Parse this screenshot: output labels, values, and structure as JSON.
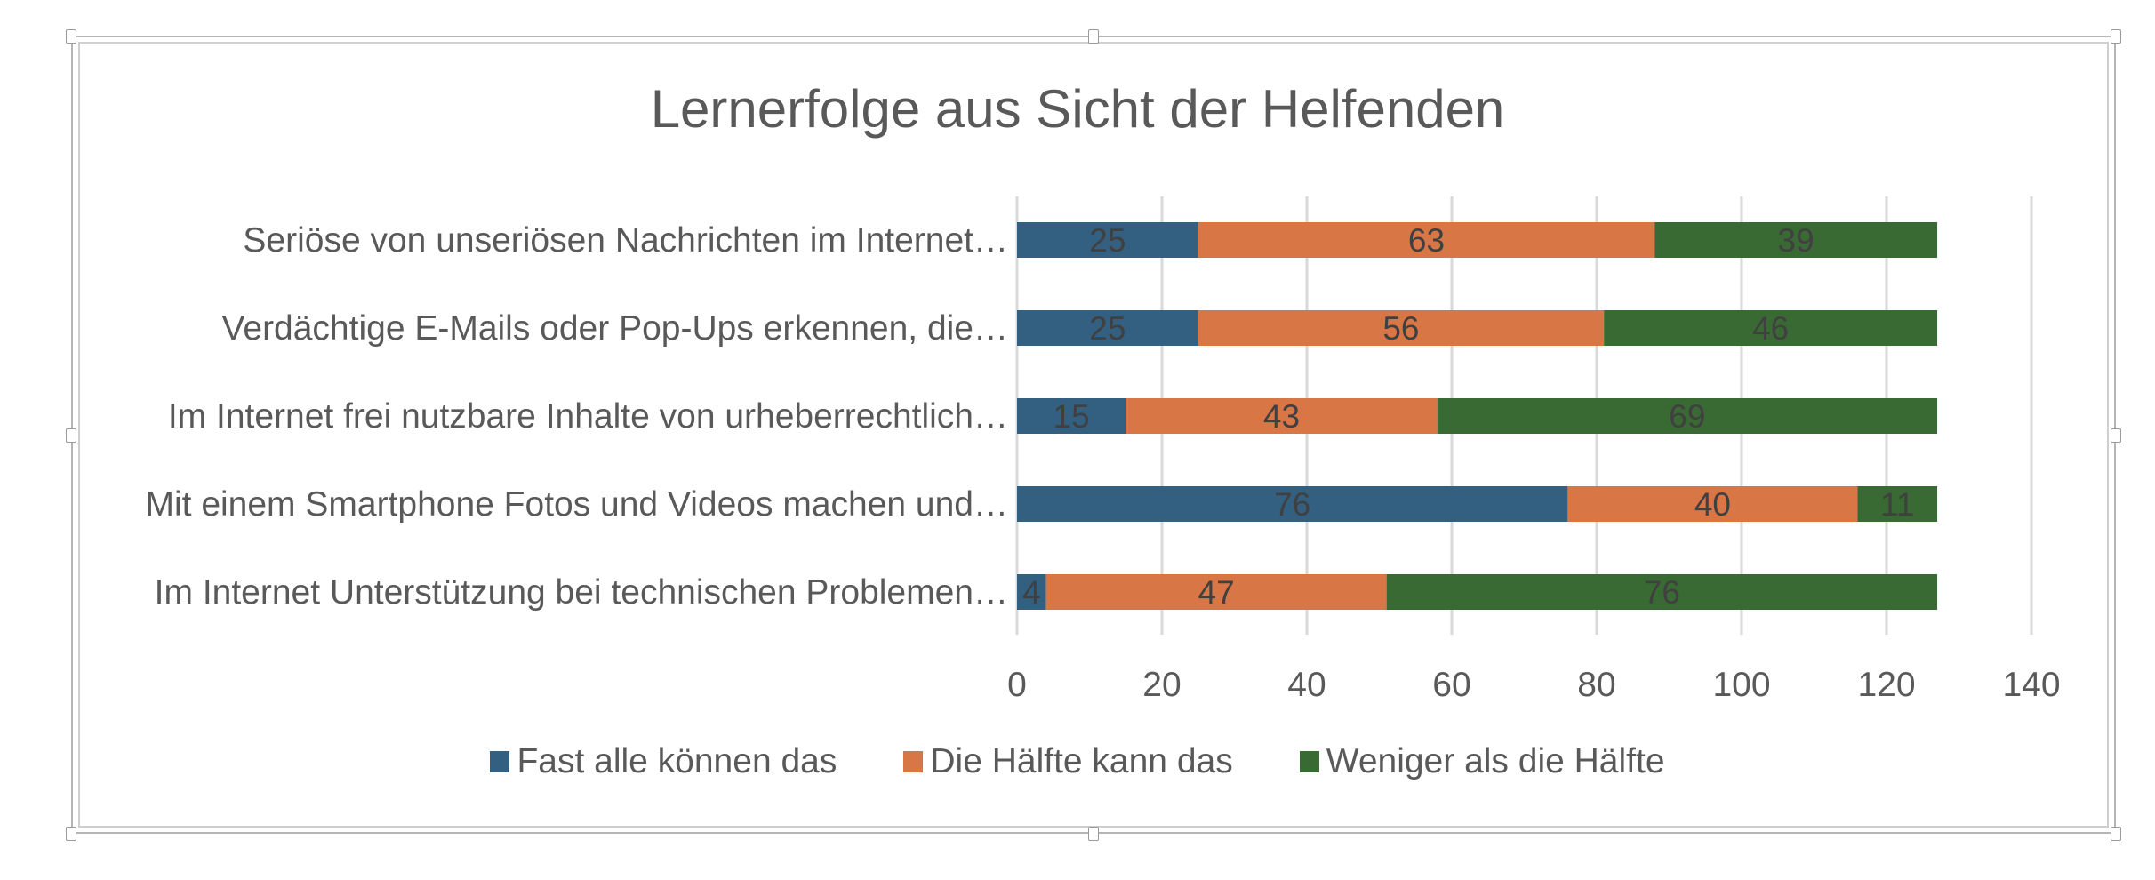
{
  "chart_data": {
    "type": "bar",
    "orientation": "horizontal",
    "stacked": true,
    "title": "Lernerfolge aus Sicht der Helfenden",
    "categories": [
      "Seriöse von unseriösen Nachrichten im Internet…",
      "Verdächtige E-Mails oder Pop-Ups erkennen, die…",
      "Im Internet frei nutzbare Inhalte von urheberrechtlich…",
      "Mit einem Smartphone Fotos und Videos machen und…",
      "Im Internet Unterstützung bei technischen Problemen…"
    ],
    "series": [
      {
        "name": "Fast alle können das",
        "color": "#335f80",
        "values": [
          25,
          25,
          15,
          76,
          4
        ]
      },
      {
        "name": "Die Hälfte kann das",
        "color": "#d97646",
        "values": [
          63,
          56,
          43,
          40,
          47
        ]
      },
      {
        "name": "Weniger als die Hälfte",
        "color": "#3a6a33",
        "values": [
          39,
          46,
          69,
          11,
          76
        ]
      }
    ],
    "xlabel": "",
    "ylabel": "",
    "xlim": [
      0,
      140
    ],
    "xticks": [
      "0",
      "20",
      "40",
      "60",
      "80",
      "100",
      "120",
      "140"
    ],
    "grid": true,
    "legend": "bottom",
    "data_labels": true
  }
}
